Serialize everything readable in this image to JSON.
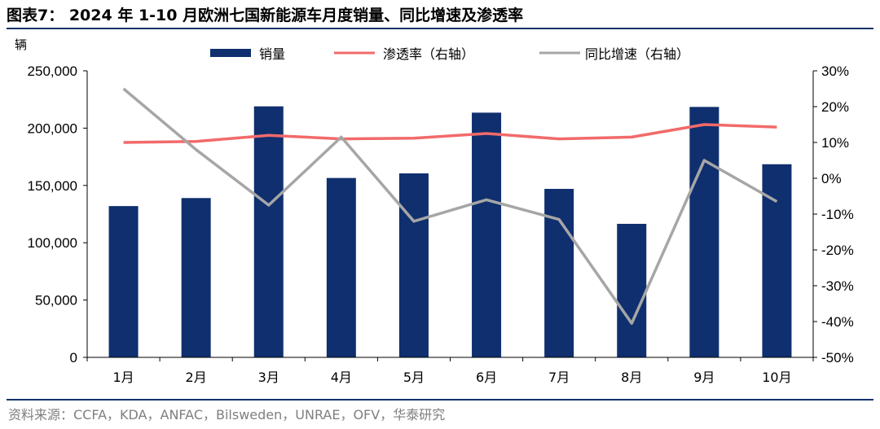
{
  "title": "图表7： 2024 年 1-10 月欧洲七国新能源车月度销量、同比增速及渗透率",
  "source": "资料来源：CCFA，KDA，ANFAC，Bilsweden，UNRAE，OFV，华泰研究",
  "colors": {
    "bar": "#0f2f6e",
    "penetration": "#f26a6a",
    "yoy": "#a6a6a6",
    "rule": "#13346b"
  },
  "chart_data": {
    "type": "bar",
    "title": "2024 年 1-10 月欧洲七国新能源车月度销量、同比增速及渗透率",
    "unit_label": "辆",
    "categories": [
      "1月",
      "2月",
      "3月",
      "4月",
      "5月",
      "6月",
      "7月",
      "8月",
      "9月",
      "10月"
    ],
    "left_axis": {
      "min": 0,
      "max": 250000,
      "ticks": [
        "0",
        "50,000",
        "100,000",
        "150,000",
        "200,000",
        "250,000"
      ]
    },
    "right_axis": {
      "min": -50,
      "max": 30,
      "ticks": [
        "-50%",
        "-40%",
        "-30%",
        "-20%",
        "-10%",
        "0%",
        "10%",
        "20%",
        "30%"
      ]
    },
    "series": [
      {
        "name": "销量",
        "type": "bar",
        "axis": "left",
        "values": [
          132000,
          139000,
          219000,
          156500,
          160500,
          213500,
          147000,
          116500,
          218500,
          168500
        ]
      },
      {
        "name": "渗透率（右轴）",
        "type": "line",
        "axis": "right",
        "values": [
          10.0,
          10.3,
          12.0,
          11.0,
          11.2,
          12.5,
          11.0,
          11.5,
          15.0,
          14.3
        ]
      },
      {
        "name": "同比增速（右轴）",
        "type": "line",
        "axis": "right",
        "values": [
          25.0,
          8.0,
          -7.5,
          11.5,
          -12.0,
          -6.0,
          -11.5,
          -40.5,
          5.0,
          -6.5
        ]
      }
    ],
    "legend_position": "top",
    "grid": false
  }
}
